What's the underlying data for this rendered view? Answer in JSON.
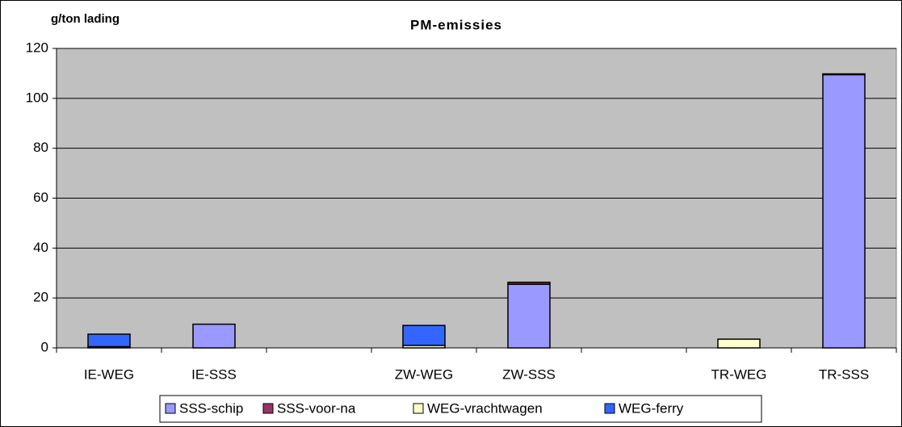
{
  "chart_data": {
    "type": "stacked_bar",
    "title": "PM-emissies",
    "y_axis_label": "g/ton lading",
    "categories": [
      "IE-WEG",
      "IE-SSS",
      null,
      "ZW-WEG",
      "ZW-SSS",
      null,
      "TR-WEG",
      "TR-SSS"
    ],
    "series": [
      {
        "name": "SSS-schip",
        "color": "#9999ff",
        "values": [
          0,
          9.5,
          null,
          0,
          25.5,
          null,
          0,
          109.5
        ]
      },
      {
        "name": "SSS-voor-na",
        "color": "#993366",
        "values": [
          0,
          0,
          null,
          0,
          0.8,
          null,
          0,
          0.3
        ]
      },
      {
        "name": "WEG-vrachtwagen",
        "color": "#ffffcc",
        "values": [
          0.5,
          0,
          null,
          1,
          0,
          null,
          3.5,
          0
        ]
      },
      {
        "name": "WEG-ferry",
        "color": "#3366ff",
        "values": [
          5,
          0,
          null,
          8,
          0,
          null,
          0,
          0
        ]
      }
    ],
    "ylim": [
      0,
      120
    ],
    "yticks": [
      0,
      20,
      40,
      60,
      80,
      100,
      120
    ],
    "grid": true,
    "legend": "bottom"
  }
}
